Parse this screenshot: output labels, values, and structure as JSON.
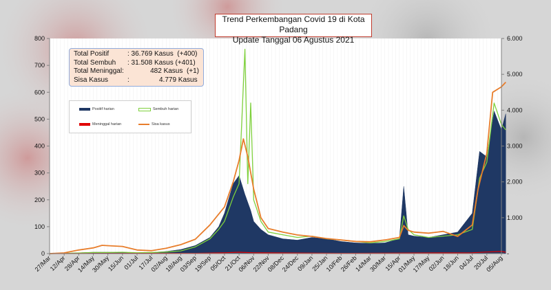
{
  "title": {
    "line1": "Trend Perkembangan Covid 19 di Kota Padang",
    "line2": "Update Tanggal 06 Agustus 2021"
  },
  "stats": [
    {
      "label": "Total Positif",
      "sep": ": 36.769",
      "unit": "Kasus",
      "delta": "(+400)"
    },
    {
      "label": "Total Sembuh",
      "sep": ": 31.508",
      "unit": "Kasus",
      "delta": "(+401)"
    },
    {
      "label": "Total Meninggal",
      "sep": ":",
      "unit": "482 Kasus",
      "delta": "(+1)"
    },
    {
      "label": "Sisa Kasus",
      "sep": ":",
      "unit": "4.779 Kasus",
      "delta": ""
    }
  ],
  "legend": {
    "positif": "Positif harian",
    "sembuh": "Sembuh harian",
    "meninggal": "Meninggal harian",
    "sisa": "Sisa kasus"
  },
  "colors": {
    "positif": "#1f3864",
    "sembuh": "#7ed03c",
    "meninggal": "#e00000",
    "sisa": "#e87d2b",
    "title_border": "#c0392b",
    "stats_bg": "#fbe4d5"
  },
  "chart_data": {
    "type": "area",
    "title": "Trend Perkembangan Covid 19 di Kota Padang",
    "x_tick_labels": [
      "27/Mar",
      "12/Apr",
      "28/Apr",
      "14/May",
      "30/May",
      "15/Jun",
      "01/Jul",
      "17/Jul",
      "02/Aug",
      "18/Aug",
      "03/Sep",
      "19/Sep",
      "05/Oct",
      "21/Oct",
      "06/Nov",
      "22/Nov",
      "08/Dec",
      "24/Dec",
      "09/Jan",
      "25/Jan",
      "10/Feb",
      "26/Feb",
      "14/Mar",
      "30/Mar",
      "15/Apr",
      "01/May",
      "17/May",
      "02/Jun",
      "18/Jun",
      "04/Jul",
      "20/Jul",
      "05/Aug"
    ],
    "y_left": {
      "ticks": [
        "0",
        "100",
        "200",
        "300",
        "400",
        "500",
        "600",
        "700",
        "800"
      ],
      "min": 0,
      "max": 800
    },
    "y_right": {
      "ticks": [
        "-",
        "1.000",
        "2.000",
        "3.000",
        "4.000",
        "5.000",
        "6.000"
      ],
      "min": 0,
      "max": 6000
    },
    "series": [
      {
        "name": "Positif harian",
        "kind": "area",
        "axis": "left",
        "points": [
          [
            0,
            0
          ],
          [
            1,
            1
          ],
          [
            2,
            3
          ],
          [
            3,
            5
          ],
          [
            4,
            5
          ],
          [
            5,
            4
          ],
          [
            6,
            3
          ],
          [
            7,
            4
          ],
          [
            8,
            8
          ],
          [
            9,
            15
          ],
          [
            10,
            30
          ],
          [
            11,
            60
          ],
          [
            11.6,
            100
          ],
          [
            12,
            150
          ],
          [
            12.6,
            260
          ],
          [
            13,
            290
          ],
          [
            13.4,
            220
          ],
          [
            13.8,
            160
          ],
          [
            14,
            120
          ],
          [
            14.5,
            90
          ],
          [
            15,
            70
          ],
          [
            16,
            55
          ],
          [
            17,
            50
          ],
          [
            18,
            60
          ],
          [
            19,
            55
          ],
          [
            20,
            45
          ],
          [
            21,
            40
          ],
          [
            22,
            38
          ],
          [
            23,
            40
          ],
          [
            24,
            55
          ],
          [
            24.3,
            250
          ],
          [
            24.6,
            70
          ],
          [
            25,
            65
          ],
          [
            26,
            60
          ],
          [
            27,
            70
          ],
          [
            28,
            80
          ],
          [
            29,
            150
          ],
          [
            29.5,
            380
          ],
          [
            30,
            360
          ],
          [
            30.5,
            530
          ],
          [
            31,
            460
          ],
          [
            31.3,
            520
          ]
        ]
      },
      {
        "name": "Sembuh harian",
        "kind": "line",
        "axis": "left",
        "points": [
          [
            0,
            0
          ],
          [
            1,
            1
          ],
          [
            2,
            2
          ],
          [
            3,
            4
          ],
          [
            4,
            4
          ],
          [
            5,
            5
          ],
          [
            6,
            3
          ],
          [
            7,
            4
          ],
          [
            8,
            6
          ],
          [
            9,
            10
          ],
          [
            10,
            25
          ],
          [
            11,
            55
          ],
          [
            11.6,
            90
          ],
          [
            12,
            120
          ],
          [
            12.6,
            210
          ],
          [
            13,
            260
          ],
          [
            13.4,
            760
          ],
          [
            13.6,
            260
          ],
          [
            13.8,
            560
          ],
          [
            14,
            200
          ],
          [
            14.5,
            120
          ],
          [
            15,
            80
          ],
          [
            16,
            70
          ],
          [
            17,
            60
          ],
          [
            18,
            65
          ],
          [
            19,
            55
          ],
          [
            20,
            50
          ],
          [
            21,
            45
          ],
          [
            22,
            40
          ],
          [
            23,
            45
          ],
          [
            24,
            55
          ],
          [
            24.3,
            140
          ],
          [
            24.6,
            90
          ],
          [
            25,
            70
          ],
          [
            26,
            60
          ],
          [
            27,
            65
          ],
          [
            28,
            70
          ],
          [
            29,
            90
          ],
          [
            29.5,
            280
          ],
          [
            30,
            340
          ],
          [
            30.5,
            560
          ],
          [
            31,
            480
          ],
          [
            31.3,
            460
          ]
        ]
      },
      {
        "name": "Meninggal harian",
        "kind": "line",
        "axis": "left",
        "points": [
          [
            0,
            0
          ],
          [
            10,
            1
          ],
          [
            12,
            3
          ],
          [
            13,
            5
          ],
          [
            14,
            3
          ],
          [
            20,
            1
          ],
          [
            29,
            3
          ],
          [
            30,
            6
          ],
          [
            31,
            8
          ],
          [
            31.3,
            5
          ]
        ]
      },
      {
        "name": "Sisa kasus",
        "kind": "line",
        "axis": "right",
        "points": [
          [
            0,
            0
          ],
          [
            1,
            20
          ],
          [
            2,
            100
          ],
          [
            3,
            160
          ],
          [
            3.6,
            230
          ],
          [
            4,
            220
          ],
          [
            5,
            200
          ],
          [
            6,
            100
          ],
          [
            7,
            80
          ],
          [
            8,
            150
          ],
          [
            9,
            250
          ],
          [
            10,
            400
          ],
          [
            11,
            800
          ],
          [
            12,
            1300
          ],
          [
            12.6,
            2000
          ],
          [
            13,
            2600
          ],
          [
            13.3,
            3200
          ],
          [
            13.6,
            2700
          ],
          [
            14,
            1800
          ],
          [
            14.5,
            1000
          ],
          [
            15,
            700
          ],
          [
            16,
            600
          ],
          [
            17,
            520
          ],
          [
            18,
            480
          ],
          [
            19,
            420
          ],
          [
            20,
            380
          ],
          [
            21,
            340
          ],
          [
            22,
            330
          ],
          [
            23,
            380
          ],
          [
            24,
            450
          ],
          [
            24.3,
            780
          ],
          [
            24.6,
            650
          ],
          [
            25,
            600
          ],
          [
            26,
            570
          ],
          [
            27,
            620
          ],
          [
            28,
            480
          ],
          [
            29,
            800
          ],
          [
            29.4,
            1800
          ],
          [
            29.7,
            2300
          ],
          [
            30,
            2800
          ],
          [
            30.4,
            4500
          ],
          [
            31,
            4650
          ],
          [
            31.3,
            4780
          ]
        ]
      }
    ]
  }
}
